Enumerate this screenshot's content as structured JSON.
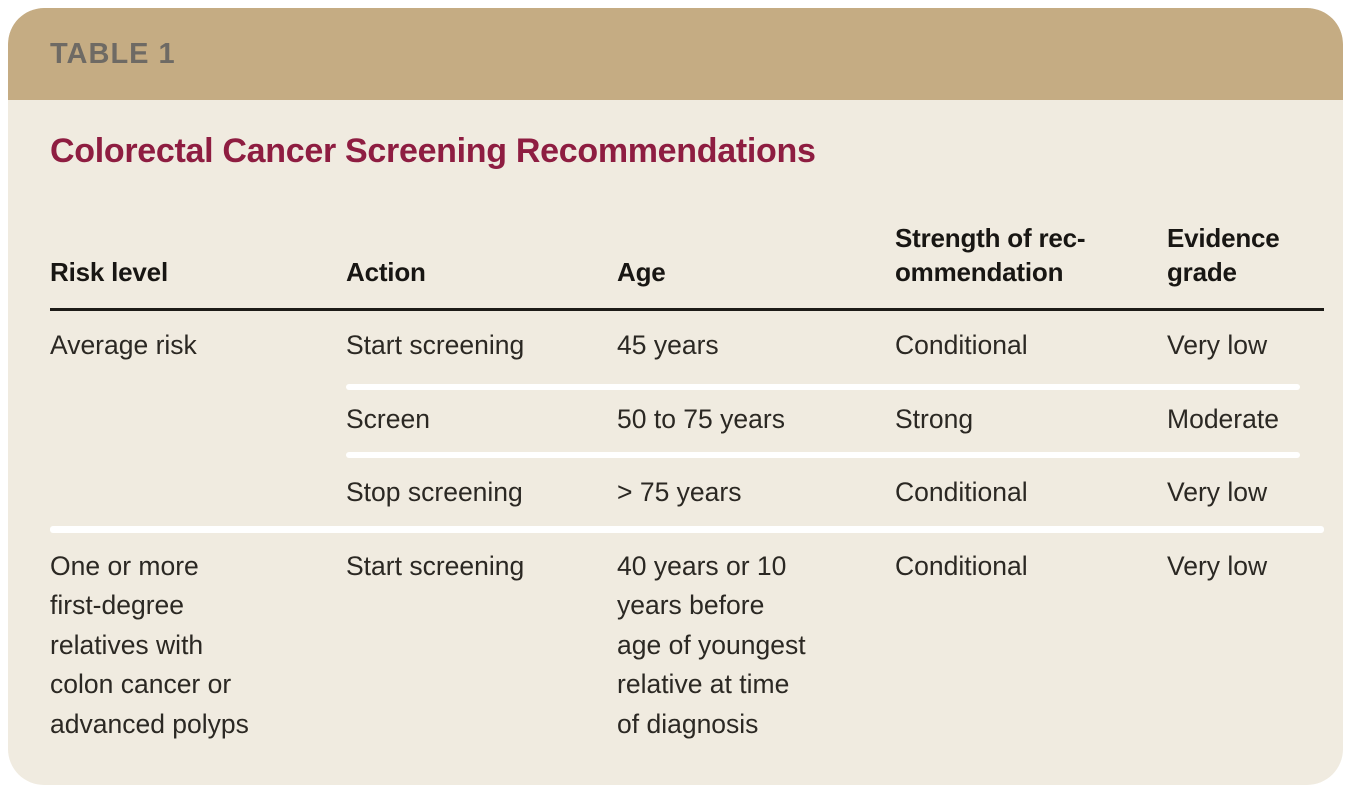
{
  "table_label": "TABLE 1",
  "title": "Colorectal Cancer Screening Recommendations",
  "colors": {
    "header_bar": "#c5ac83",
    "card_background": "#f0ebe0",
    "page_background": "#ffffff",
    "title_text": "#8e1d41",
    "table_label_text": "#6e6a64",
    "header_text": "#181613",
    "body_text": "#2b2823",
    "header_rule": "#1d1b17",
    "row_separator": "#ffffff"
  },
  "columns": [
    "Risk level",
    "Action",
    "Age",
    "Strength of rec-\nommendation",
    "Evidence\ngrade"
  ],
  "rows": [
    {
      "risk": "Average risk",
      "action": "Start screening",
      "age": "45 years",
      "strength": "Conditional",
      "evidence": "Very low"
    },
    {
      "risk": "",
      "action": "Screen",
      "age": "50 to 75 years",
      "strength": "Strong",
      "evidence": "Moderate"
    },
    {
      "risk": "",
      "action": "Stop screening",
      "age": "> 75 years",
      "strength": "Conditional",
      "evidence": "Very low"
    },
    {
      "risk": "One or more\nfirst-degree\nrelatives with\ncolon cancer or\nadvanced polyps",
      "action": "Start screening",
      "age": "40 years or 10\nyears before\nage of youngest\nrelative at time\nof diagnosis",
      "strength": "Conditional",
      "evidence": "Very low"
    }
  ]
}
